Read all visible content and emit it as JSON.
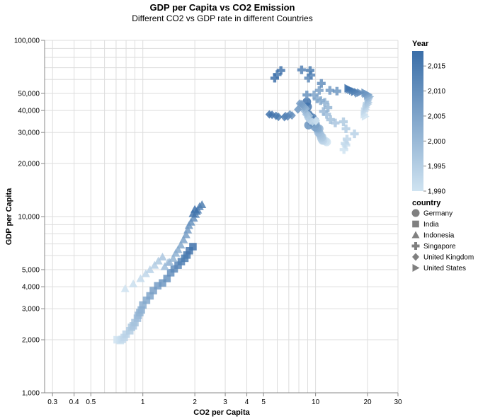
{
  "chart_data": {
    "type": "scatter",
    "title": "GDP per Capita vs CO2 Emission",
    "subtitle": "Different CO2 vs GDP rate in different Countries",
    "xlabel": "CO2 per Capita",
    "ylabel": "GDP per Capita",
    "x_scale": "log",
    "y_scale": "log",
    "xlim": [
      0.27,
      30
    ],
    "ylim": [
      1000,
      100000
    ],
    "grid": true,
    "x_tick_labels": [
      "0.3",
      "0.4",
      "0.5",
      "1",
      "2",
      "3",
      "4",
      "5",
      "10",
      "20",
      "30"
    ],
    "x_tick_values": [
      0.3,
      0.4,
      0.5,
      1,
      2,
      3,
      4,
      5,
      10,
      20,
      30
    ],
    "y_tick_labels": [
      "1,000",
      "2,000",
      "3,000",
      "4,000",
      "5,000",
      "10,000",
      "20,000",
      "30,000",
      "40,000",
      "50,000",
      "100,000"
    ],
    "y_tick_values": [
      1000,
      2000,
      3000,
      4000,
      5000,
      10000,
      20000,
      30000,
      40000,
      50000,
      100000
    ],
    "color_legend": {
      "title": "Year",
      "range": [
        1990,
        2018
      ],
      "ticks": [
        2015,
        2010,
        2005,
        2000,
        1995,
        1990
      ],
      "tick_labels": [
        "2,015",
        "2,010",
        "2,005",
        "2,000",
        "1,995",
        "1,990"
      ],
      "color_low": "#cfe3f1",
      "color_high": "#3a6ea8"
    },
    "shape_legend": {
      "title": "country",
      "entries": [
        {
          "name": "Germany",
          "shape": "circle"
        },
        {
          "name": "India",
          "shape": "square"
        },
        {
          "name": "Indonesia",
          "shape": "triangle-up"
        },
        {
          "name": "Singapore",
          "shape": "cross"
        },
        {
          "name": "United Kingdom",
          "shape": "diamond"
        },
        {
          "name": "United States",
          "shape": "triangle-right"
        }
      ]
    },
    "series": [
      {
        "name": "Germany",
        "shape": "circle",
        "points": [
          [
            11.6,
            26500,
            1990
          ],
          [
            11.4,
            26800,
            1991
          ],
          [
            11.1,
            27100,
            1992
          ],
          [
            11.0,
            27000,
            1993
          ],
          [
            10.9,
            27400,
            1994
          ],
          [
            10.8,
            27900,
            1995
          ],
          [
            10.9,
            28300,
            1996
          ],
          [
            10.7,
            28800,
            1997
          ],
          [
            10.6,
            29400,
            1998
          ],
          [
            10.4,
            30000,
            1999
          ],
          [
            10.3,
            31000,
            2000
          ],
          [
            10.5,
            31500,
            2001
          ],
          [
            10.3,
            31700,
            2002
          ],
          [
            10.2,
            31600,
            2003
          ],
          [
            10.1,
            32000,
            2004
          ],
          [
            9.9,
            32300,
            2005
          ],
          [
            10.0,
            33500,
            2006
          ],
          [
            9.7,
            34600,
            2007
          ],
          [
            9.9,
            35000,
            2008
          ],
          [
            9.1,
            33000,
            2009
          ],
          [
            9.5,
            34400,
            2010
          ],
          [
            9.3,
            35700,
            2011
          ],
          [
            9.4,
            35900,
            2012
          ],
          [
            9.6,
            36400,
            2013
          ],
          [
            9.2,
            37000,
            2014
          ],
          [
            9.1,
            38000,
            2015
          ],
          [
            9.0,
            42000,
            2016
          ],
          [
            8.9,
            44800,
            2017
          ]
        ]
      },
      {
        "name": "India",
        "shape": "square",
        "points": [
          [
            0.71,
            2000,
            1990
          ],
          [
            0.74,
            1980,
            1991
          ],
          [
            0.76,
            2010,
            1992
          ],
          [
            0.78,
            2060,
            1993
          ],
          [
            0.8,
            2150,
            1994
          ],
          [
            0.84,
            2250,
            1995
          ],
          [
            0.86,
            2350,
            1996
          ],
          [
            0.88,
            2400,
            1997
          ],
          [
            0.9,
            2500,
            1998
          ],
          [
            0.93,
            2650,
            1999
          ],
          [
            0.94,
            2750,
            2000
          ],
          [
            0.96,
            2850,
            2001
          ],
          [
            0.98,
            2950,
            2002
          ],
          [
            1.0,
            3150,
            2003
          ],
          [
            1.05,
            3350,
            2004
          ],
          [
            1.1,
            3550,
            2005
          ],
          [
            1.15,
            3800,
            2006
          ],
          [
            1.22,
            4050,
            2007
          ],
          [
            1.3,
            4200,
            2008
          ],
          [
            1.38,
            4450,
            2009
          ],
          [
            1.45,
            4800,
            2010
          ],
          [
            1.52,
            5050,
            2011
          ],
          [
            1.6,
            5300,
            2012
          ],
          [
            1.67,
            5550,
            2013
          ],
          [
            1.75,
            5800,
            2014
          ],
          [
            1.8,
            6050,
            2015
          ],
          [
            1.86,
            6400,
            2016
          ],
          [
            1.95,
            6750,
            2017
          ]
        ]
      },
      {
        "name": "Indonesia",
        "shape": "triangle-up",
        "points": [
          [
            0.79,
            3900,
            1990
          ],
          [
            0.88,
            4150,
            1991
          ],
          [
            0.97,
            4450,
            1992
          ],
          [
            1.04,
            4750,
            1993
          ],
          [
            1.1,
            5000,
            1994
          ],
          [
            1.17,
            5300,
            1995
          ],
          [
            1.23,
            5600,
            1996
          ],
          [
            1.3,
            5900,
            1997
          ],
          [
            1.4,
            5500,
            1998
          ],
          [
            1.34,
            5200,
            1999
          ],
          [
            1.43,
            5500,
            2000
          ],
          [
            1.5,
            5800,
            2001
          ],
          [
            1.55,
            6200,
            2002
          ],
          [
            1.6,
            6500,
            2003
          ],
          [
            1.66,
            6900,
            2004
          ],
          [
            1.72,
            7400,
            2005
          ],
          [
            1.78,
            7900,
            2006
          ],
          [
            1.82,
            8400,
            2007
          ],
          [
            1.85,
            8900,
            2008
          ],
          [
            1.9,
            9300,
            2009
          ],
          [
            1.97,
            9800,
            2010
          ],
          [
            2.02,
            10300,
            2011
          ],
          [
            2.08,
            10900,
            2012
          ],
          [
            2.13,
            11400,
            2013
          ],
          [
            2.2,
            11700,
            2014
          ],
          [
            2.05,
            10700,
            2015
          ],
          [
            1.95,
            10400,
            2016
          ],
          [
            2.0,
            11000,
            2017
          ]
        ]
      },
      {
        "name": "Singapore",
        "shape": "cross",
        "points": [
          [
            14.6,
            24000,
            1990
          ],
          [
            15.0,
            25500,
            1991
          ],
          [
            14.8,
            26000,
            1992
          ],
          [
            15.2,
            27500,
            1993
          ],
          [
            16.8,
            29500,
            1994
          ],
          [
            15.0,
            31500,
            1995
          ],
          [
            14.5,
            34500,
            1996
          ],
          [
            13.0,
            34000,
            1997
          ],
          [
            12.2,
            35500,
            1998
          ],
          [
            11.6,
            38000,
            1999
          ],
          [
            11.1,
            39500,
            2000
          ],
          [
            11.8,
            41500,
            2001
          ],
          [
            11.3,
            44500,
            2002
          ],
          [
            10.7,
            45500,
            2003
          ],
          [
            10.2,
            46500,
            2004
          ],
          [
            9.8,
            49000,
            2005
          ],
          [
            10.5,
            52000,
            2006
          ],
          [
            12.1,
            52000,
            2007
          ],
          [
            13.3,
            51500,
            2008
          ],
          [
            8.9,
            49000,
            2009
          ],
          [
            10.8,
            57000,
            2010
          ],
          [
            9.1,
            61000,
            2011
          ],
          [
            9.4,
            63500,
            2012
          ],
          [
            8.3,
            68000,
            2013
          ],
          [
            9.3,
            67500,
            2014
          ],
          [
            6.0,
            64000,
            2015
          ],
          [
            6.3,
            67500,
            2016
          ],
          [
            5.8,
            61000,
            2017
          ]
        ]
      },
      {
        "name": "United Kingdom",
        "shape": "diamond",
        "points": [
          [
            10.1,
            35000,
            1990
          ],
          [
            10.0,
            34800,
            1991
          ],
          [
            9.6,
            34500,
            1992
          ],
          [
            9.3,
            35000,
            1993
          ],
          [
            9.1,
            35800,
            1994
          ],
          [
            9.0,
            36500,
            1995
          ],
          [
            9.2,
            37300,
            1996
          ],
          [
            8.8,
            38000,
            1997
          ],
          [
            8.8,
            38900,
            1998
          ],
          [
            8.6,
            39800,
            1999
          ],
          [
            8.7,
            40500,
            2000
          ],
          [
            8.8,
            41000,
            2001
          ],
          [
            8.5,
            41500,
            2002
          ],
          [
            8.6,
            42000,
            2003
          ],
          [
            8.5,
            42500,
            2004
          ],
          [
            8.4,
            43000,
            2005
          ],
          [
            8.3,
            43500,
            2006
          ],
          [
            8.1,
            43800,
            2007
          ],
          [
            7.9,
            40500,
            2008
          ],
          [
            7.1,
            38000,
            2009
          ],
          [
            7.3,
            37500,
            2010
          ],
          [
            6.7,
            37200,
            2011
          ],
          [
            6.9,
            37000,
            2012
          ],
          [
            6.6,
            36700,
            2013
          ],
          [
            6.1,
            36800,
            2014
          ],
          [
            5.9,
            37300,
            2015
          ],
          [
            5.6,
            37800,
            2016
          ],
          [
            5.4,
            38000,
            2017
          ]
        ]
      },
      {
        "name": "United States",
        "shape": "triangle-right",
        "points": [
          [
            19.4,
            37000,
            1990
          ],
          [
            19.1,
            38000,
            1991
          ],
          [
            19.2,
            39500,
            1992
          ],
          [
            19.5,
            40500,
            1993
          ],
          [
            19.6,
            41500,
            1994
          ],
          [
            19.7,
            42500,
            1995
          ],
          [
            20.1,
            43500,
            1996
          ],
          [
            20.2,
            44500,
            1997
          ],
          [
            20.1,
            45500,
            1998
          ],
          [
            20.3,
            46500,
            1999
          ],
          [
            20.4,
            47500,
            2000
          ],
          [
            20.6,
            48000,
            2001
          ],
          [
            20.0,
            48500,
            2002
          ],
          [
            20.1,
            48800,
            2003
          ],
          [
            20.2,
            49200,
            2004
          ],
          [
            20.0,
            49500,
            2005
          ],
          [
            19.5,
            49800,
            2006
          ],
          [
            19.6,
            50000,
            2007
          ],
          [
            19.3,
            50500,
            2008
          ],
          [
            17.7,
            50000,
            2009
          ],
          [
            18.2,
            50500,
            2010
          ],
          [
            17.5,
            50800,
            2011
          ],
          [
            16.8,
            51000,
            2012
          ],
          [
            16.9,
            51300,
            2013
          ],
          [
            16.4,
            51800,
            2014
          ],
          [
            16.0,
            52300,
            2015
          ],
          [
            15.6,
            52800,
            2016
          ],
          [
            15.4,
            53500,
            2017
          ]
        ]
      }
    ]
  }
}
